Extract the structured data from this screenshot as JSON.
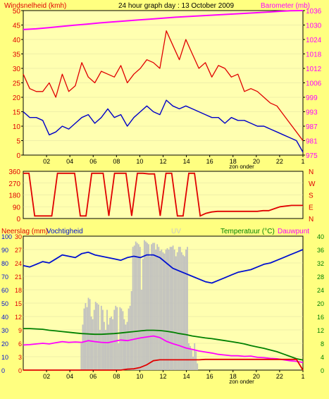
{
  "colors": {
    "background": "#ffff80",
    "plot_bg": "#ffffb0",
    "grid": "#e0e0a0",
    "wind_avg": "#0000c8",
    "wind_gust": "#e00000",
    "barometer": "#ff00ff",
    "direction": "#e00000",
    "humidity": "#0010d0",
    "temperature": "#008000",
    "dewpoint": "#ff00ff",
    "rain": "#e00000",
    "uv": "#c0c0c0",
    "title": "#000000"
  },
  "chart_data": [
    {
      "id": "wind",
      "type": "line",
      "title": "24 hour graph day : 13 October 2009",
      "ylabel_left": "Windsnelheid (kmh)",
      "ylabel_right": "Barometer (mb)",
      "ylim_left": [
        0,
        50
      ],
      "ylim_right": [
        975,
        1036
      ],
      "left_ticks": [
        "50",
        "45",
        "40",
        "35",
        "30",
        "25",
        "20",
        "15",
        "10",
        "5",
        "0"
      ],
      "right_ticks": [
        "1036",
        "1030",
        "1024",
        "1018",
        "1012",
        "1006",
        "999",
        "993",
        "987",
        "981",
        "975"
      ],
      "x_ticks": [
        "02",
        "04",
        "06",
        "08",
        "10",
        "12",
        "14",
        "16",
        "18",
        "20",
        "22",
        "1"
      ],
      "x_annotation": "zon onder",
      "series": [
        {
          "name": "Windsnelheid",
          "role": "average",
          "values": [
            15,
            13,
            13,
            12,
            7,
            8,
            10,
            9,
            11,
            13,
            14,
            11,
            13,
            16,
            13,
            14,
            10,
            13,
            15,
            17,
            15,
            14,
            19,
            17,
            16,
            17,
            16,
            15,
            14,
            13,
            13,
            11,
            13,
            12,
            12,
            11,
            10,
            10,
            9,
            8,
            7,
            6,
            5,
            1
          ]
        },
        {
          "name": "Windstoten",
          "role": "gust",
          "values": [
            28,
            23,
            22,
            22,
            25,
            20,
            28,
            22,
            24,
            32,
            27,
            25,
            29,
            28,
            27,
            31,
            25,
            28,
            30,
            33,
            32,
            30,
            43,
            38,
            33,
            40,
            35,
            30,
            32,
            27,
            31,
            30,
            27,
            28,
            22,
            23,
            22,
            20,
            18,
            17,
            14,
            11,
            8,
            5
          ]
        },
        {
          "name": "Barometer",
          "role": "pressure",
          "values": [
            1028,
            1028.3,
            1028.8,
            1029.3,
            1029.8,
            1030.3,
            1030.8,
            1031.2,
            1031.6,
            1032,
            1032.4,
            1032.8,
            1033.2,
            1033.5,
            1033.8,
            1034.1,
            1034.4,
            1034.7,
            1035,
            1035.3,
            1035.6,
            1035.9,
            1036
          ]
        }
      ]
    },
    {
      "id": "direction",
      "type": "line",
      "ylim_left": [
        0,
        360
      ],
      "left_ticks": [
        "360",
        "270",
        "180",
        "90",
        "0"
      ],
      "right_ticks": [
        "N",
        "W",
        "S",
        "E",
        "N"
      ],
      "series": [
        {
          "name": "Windrichting",
          "values": [
            345,
            345,
            20,
            20,
            20,
            20,
            345,
            345,
            345,
            345,
            20,
            20,
            345,
            345,
            345,
            20,
            345,
            345,
            345,
            20,
            345,
            345,
            340,
            340,
            20,
            345,
            345,
            20,
            20,
            345,
            345,
            20,
            40,
            50,
            55,
            55,
            55,
            55,
            55,
            55,
            55,
            55,
            60,
            60,
            75,
            90,
            95,
            100,
            100,
            100
          ]
        }
      ]
    },
    {
      "id": "rain_temp",
      "type": "line",
      "ylabel_left": "Neerslag (mm)",
      "ylabel_left2": "Vochtigheid",
      "uv_label": "UV",
      "ylabel_right": "Temperatuur (°C)",
      "ylabel_right2": "Dauwpunt",
      "ylim_left": [
        0,
        100
      ],
      "ylim_rain": [
        0,
        30
      ],
      "ylim_right": [
        0,
        40
      ],
      "left_ticks": [
        "100",
        "90",
        "80",
        "70",
        "60",
        "50",
        "40",
        "30",
        "20",
        "10",
        "0"
      ],
      "rain_ticks": [
        "30",
        "27",
        "24",
        "21",
        "18",
        "15",
        "12",
        "9",
        "6",
        "3",
        "0"
      ],
      "right_ticks": [
        "40",
        "36",
        "32",
        "28",
        "24",
        "20",
        "16",
        "12",
        "8",
        "4",
        "0"
      ],
      "x_ticks": [
        "02",
        "04",
        "06",
        "08",
        "10",
        "12",
        "14",
        "16",
        "18",
        "20",
        "22",
        "1"
      ],
      "x_annotation": "zon onder",
      "series": [
        {
          "name": "Vochtigheid",
          "values": [
            78,
            77,
            79,
            81,
            80,
            83,
            86,
            85,
            84,
            87,
            88,
            86,
            85,
            84,
            83,
            82,
            84,
            85,
            84,
            86,
            86,
            84,
            80,
            76,
            74,
            72,
            70,
            68,
            66,
            65,
            67,
            69,
            71,
            73,
            74,
            75,
            77,
            79,
            80,
            82,
            84,
            86,
            88,
            90
          ]
        },
        {
          "name": "Temperatuur",
          "values": [
            12.4,
            12.4,
            12.3,
            12.2,
            11.9,
            11.7,
            11.5,
            11.3,
            11.1,
            10.9,
            10.8,
            10.7,
            10.7,
            10.8,
            10.9,
            11.1,
            11.3,
            11.5,
            11.7,
            11.9,
            11.9,
            11.8,
            11.6,
            11.3,
            10.9,
            10.6,
            10.2,
            9.9,
            9.6,
            9.4,
            9.1,
            8.8,
            8.5,
            8.2,
            7.8,
            7.3,
            6.9,
            6.5,
            6,
            5.5,
            4.8,
            4.1,
            3.4,
            3
          ]
        },
        {
          "name": "Dauwpunt",
          "values": [
            7.5,
            7.6,
            7.8,
            8,
            7.8,
            8.2,
            8.5,
            8.3,
            8.4,
            8.3,
            8.8,
            8.5,
            8.3,
            8.2,
            8.6,
            9,
            8.8,
            9.2,
            9.6,
            9.9,
            10.2,
            9.7,
            8.6,
            7.9,
            7.3,
            6.6,
            6.2,
            5.7,
            5.4,
            5.1,
            4.7,
            4.5,
            4.3,
            4.3,
            4.1,
            4.2,
            3.8,
            3.7,
            3.5,
            3.4,
            3.1,
            2.8,
            2.6,
            2.3
          ]
        },
        {
          "name": "Neerslag",
          "values": [
            0,
            0,
            0,
            0,
            0,
            0,
            0,
            0,
            0,
            0,
            0,
            0,
            0,
            0,
            0,
            0,
            0.2,
            0.3,
            0.6,
            1.2,
            2.1,
            2.3,
            2.3,
            2.3,
            2.3,
            2.3,
            2.3,
            2.3,
            2.4,
            2.4,
            2.4,
            2.4,
            2.4,
            2.4,
            2.4,
            2.4,
            2.4,
            2.4,
            2.4,
            2.4,
            2.4,
            2.4,
            2.4,
            0
          ]
        },
        {
          "name": "UV",
          "values": [
            0,
            0,
            0,
            0,
            0,
            0,
            0,
            0,
            0,
            0,
            0,
            0,
            0,
            0,
            0,
            0,
            0,
            0,
            0,
            0,
            0,
            0,
            0,
            0,
            0,
            0,
            0,
            0,
            0,
            0,
            0,
            0,
            0,
            0,
            0,
            0,
            0,
            0,
            0,
            0,
            20,
            34,
            46,
            50,
            47,
            54,
            53,
            40,
            38,
            45,
            51,
            50,
            49,
            30,
            48,
            45,
            36,
            30,
            45,
            34,
            39,
            40,
            38,
            45,
            48,
            47,
            20,
            47,
            46,
            44,
            38,
            34,
            36,
            46,
            48,
            59,
            92,
            93,
            96,
            95,
            94,
            92,
            60,
            83,
            97,
            96,
            95,
            94,
            85,
            94,
            95,
            95,
            90,
            94,
            92,
            89,
            90,
            88,
            87,
            90,
            91,
            90,
            92,
            92,
            93,
            90,
            85,
            88,
            92,
            92,
            88,
            86,
            85,
            90,
            92,
            20,
            18,
            15,
            10,
            20,
            14,
            5,
            0,
            0,
            0,
            0,
            0,
            0,
            0,
            0,
            0,
            0,
            0,
            0,
            0,
            0,
            0,
            0,
            0,
            0,
            0,
            0,
            0,
            0,
            0,
            0,
            0,
            0,
            0,
            0,
            0,
            0,
            0,
            0,
            0,
            0,
            0,
            0,
            0,
            0,
            0,
            0,
            0,
            0,
            0,
            0,
            0,
            0,
            0,
            0,
            0,
            0,
            0,
            0,
            0,
            0,
            0,
            0,
            0,
            0,
            0,
            0,
            0,
            0,
            0,
            0,
            0,
            0,
            0,
            0,
            0,
            0,
            0,
            0,
            0
          ]
        }
      ]
    }
  ]
}
